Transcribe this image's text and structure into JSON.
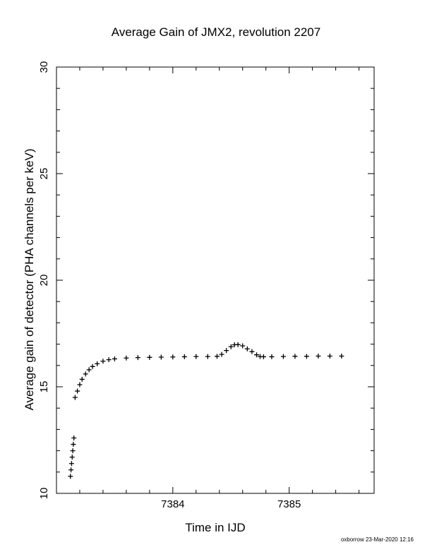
{
  "chart_data": {
    "type": "scatter",
    "title": "Average Gain of JMX2, revolution 2207",
    "xlabel": "Time in IJD",
    "ylabel": "Average gain of detector (PHA channels per keV)",
    "xlim": [
      7383.0,
      7385.73
    ],
    "ylim": [
      10,
      30
    ],
    "x_ticks": [
      7384,
      7385
    ],
    "y_ticks": [
      10,
      15,
      20,
      25,
      30
    ],
    "marker": "plus",
    "grid": false,
    "series": [
      {
        "values": [
          [
            7383.12,
            10.8
          ],
          [
            7383.125,
            11.1
          ],
          [
            7383.13,
            11.4
          ],
          [
            7383.135,
            11.7
          ],
          [
            7383.14,
            12.0
          ],
          [
            7383.145,
            12.3
          ],
          [
            7383.15,
            12.6
          ],
          [
            7383.16,
            14.5
          ],
          [
            7383.18,
            14.8
          ],
          [
            7383.2,
            15.1
          ],
          [
            7383.22,
            15.35
          ],
          [
            7383.25,
            15.6
          ],
          [
            7383.28,
            15.8
          ],
          [
            7383.31,
            15.95
          ],
          [
            7383.35,
            16.08
          ],
          [
            7383.4,
            16.2
          ],
          [
            7383.45,
            16.27
          ],
          [
            7383.5,
            16.31
          ],
          [
            7383.6,
            16.35
          ],
          [
            7383.7,
            16.37
          ],
          [
            7383.8,
            16.38
          ],
          [
            7383.9,
            16.39
          ],
          [
            7384.0,
            16.4
          ],
          [
            7384.1,
            16.41
          ],
          [
            7384.2,
            16.42
          ],
          [
            7384.3,
            16.42
          ],
          [
            7384.38,
            16.43
          ],
          [
            7384.42,
            16.52
          ],
          [
            7384.46,
            16.7
          ],
          [
            7384.5,
            16.88
          ],
          [
            7384.53,
            16.97
          ],
          [
            7384.56,
            16.98
          ],
          [
            7384.6,
            16.92
          ],
          [
            7384.64,
            16.78
          ],
          [
            7384.68,
            16.65
          ],
          [
            7384.72,
            16.5
          ],
          [
            7384.75,
            16.42
          ],
          [
            7384.78,
            16.41
          ],
          [
            7384.85,
            16.41
          ],
          [
            7384.95,
            16.42
          ],
          [
            7385.05,
            16.43
          ],
          [
            7385.15,
            16.43
          ],
          [
            7385.25,
            16.44
          ],
          [
            7385.35,
            16.44
          ],
          [
            7385.45,
            16.44
          ]
        ]
      }
    ]
  },
  "footer": "oxborrow 23-Mar-2020 12:16"
}
